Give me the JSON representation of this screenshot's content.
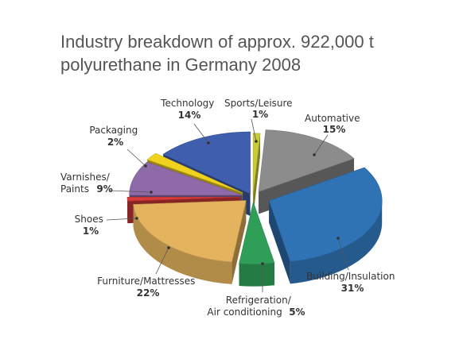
{
  "title_lines": [
    "Industry breakdown of approx. 922,000 t",
    "polyurethane in Germany 2008"
  ],
  "chart_data": {
    "type": "pie",
    "title": "Industry breakdown of approx. 922,000 t polyurethane in Germany 2008",
    "three_d": true,
    "exploded": true,
    "slices": [
      {
        "label": "Sports/Leisure",
        "value": 1,
        "text": "1%",
        "color": "#c8cc3a"
      },
      {
        "label": "Automative",
        "value": 15,
        "text": "15%",
        "color": "#8c8c8c"
      },
      {
        "label": "Building/Insulation",
        "value": 31,
        "text": "31%",
        "color": "#2f73b5"
      },
      {
        "label": "Refrigeration/Air conditioning",
        "value": 5,
        "text": "5%",
        "color": "#2f9e57"
      },
      {
        "label": "Furniture/Mattresses",
        "value": 22,
        "text": "22%",
        "color": "#e3b35e"
      },
      {
        "label": "Shoes",
        "value": 1,
        "text": "1%",
        "color": "#d93a3a"
      },
      {
        "label": "Varnishes/Paints",
        "value": 9,
        "text": "9%",
        "color": "#8f6aa8"
      },
      {
        "label": "Packaging",
        "value": 2,
        "text": "2%",
        "color": "#efd21e"
      },
      {
        "label": "Technology",
        "value": 14,
        "text": "14%",
        "color": "#3f5fae"
      }
    ],
    "labels": {
      "sports": [
        "Sports/Leisure",
        "1%"
      ],
      "automative": [
        "Automative",
        "15%"
      ],
      "building": [
        "Building/Insulation",
        "31%"
      ],
      "refrigeration": [
        "Refrigeration/",
        "Air conditioning",
        "5%"
      ],
      "furniture": [
        "Furniture/Mattresses",
        "22%"
      ],
      "shoes": [
        "Shoes",
        "1%"
      ],
      "varnishes": [
        "Varnishes/",
        "Paints",
        "9%"
      ],
      "packaging": [
        "Packaging",
        "2%"
      ],
      "technology": [
        "Technology",
        "14%"
      ]
    }
  }
}
